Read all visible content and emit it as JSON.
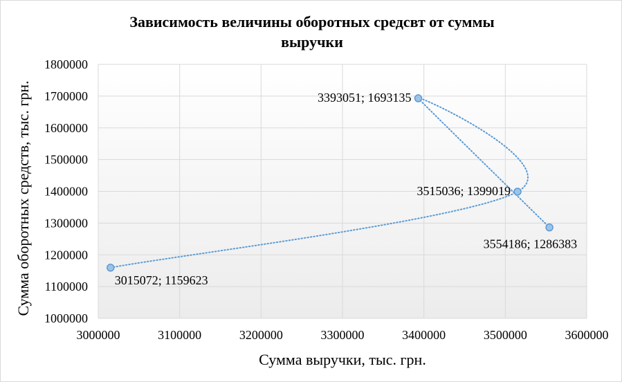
{
  "chart_data": {
    "type": "scatter",
    "title": "Зависимость величины оборотных средсвт от суммы выручки",
    "xlabel": "Сумма выручки, тыс. грн.",
    "ylabel": "Сумма оборотных средств, тыс. грн.",
    "xlim": [
      3000000,
      3600000
    ],
    "ylim": [
      1000000,
      1800000
    ],
    "x_ticks": [
      "3000000",
      "3100000",
      "3200000",
      "3300000",
      "3400000",
      "3500000",
      "3600000"
    ],
    "y_ticks": [
      "1000000",
      "1100000",
      "1200000",
      "1300000",
      "1400000",
      "1500000",
      "1600000",
      "1700000",
      "1800000"
    ],
    "grid": true,
    "smoothed_dotted_line": true,
    "colors": {
      "marker_fill": "#9dc3e6",
      "marker_stroke": "#5b9bd5",
      "line": "#5b9bd5",
      "grid": "#d9d9d9"
    },
    "points": [
      {
        "x": 3015072,
        "y": 1159623,
        "label": "3015072; 1159623",
        "label_pos": "below-right"
      },
      {
        "x": 3515036,
        "y": 1399019,
        "label": "3515036; 1399019",
        "label_pos": "left"
      },
      {
        "x": 3393051,
        "y": 1693135,
        "label": "3393051; 1693135",
        "label_pos": "left"
      },
      {
        "x": 3554186,
        "y": 1286383,
        "label": "3554186; 1286383",
        "label_pos": "below-left"
      }
    ]
  }
}
